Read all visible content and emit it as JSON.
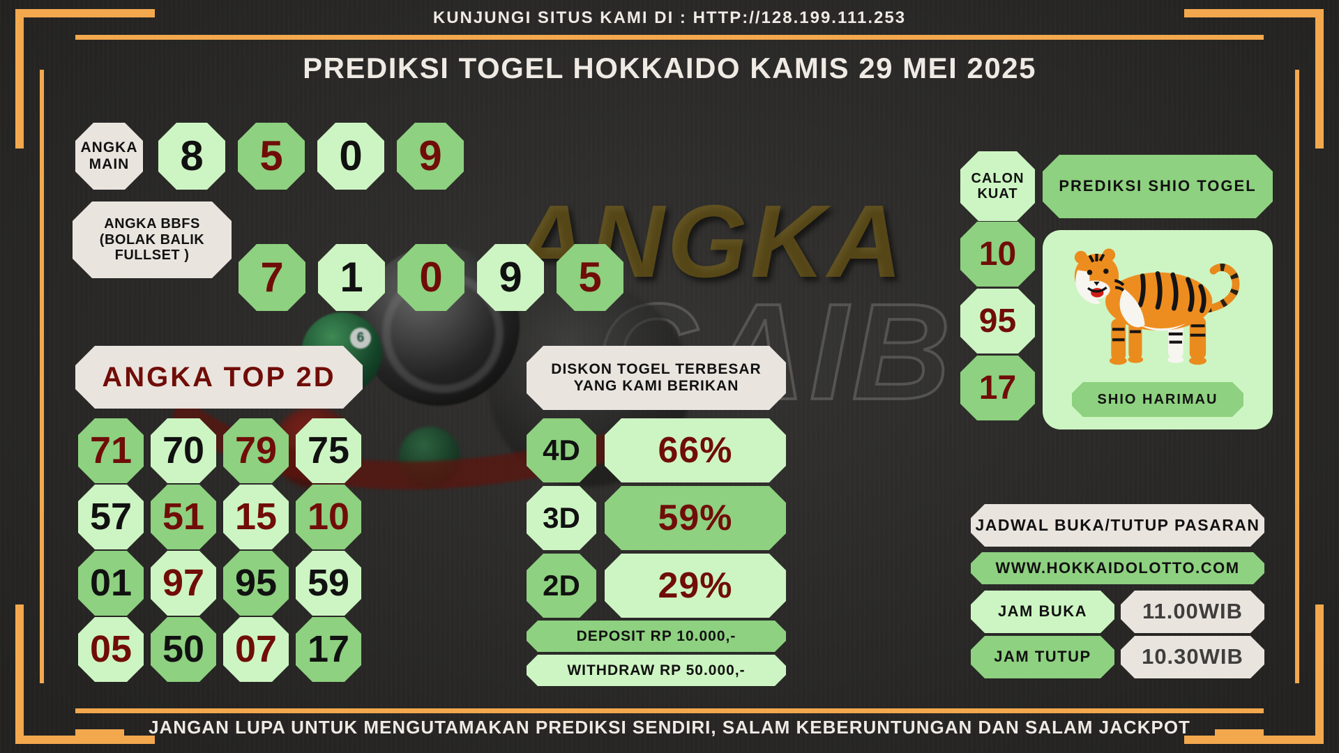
{
  "palette": {
    "background": "#2d2c2a",
    "accent_orange": "#f3a84e",
    "panel_cream": "#eae4df",
    "green_light": "#cdf5c3",
    "green_dark": "#8ed180",
    "text_maroon": "#700d08",
    "text_black": "#111111",
    "text_cream": "#efeae4",
    "text_gray": "#3f3e3c"
  },
  "top_bar": {
    "text": "KUNJUNGI SITUS KAMI DI : HTTP://128.199.111.253"
  },
  "title": "PREDIKSI TOGEL HOKKAIDO KAMIS 29 MEI 2025",
  "watermark": {
    "line1": "ANGKA",
    "line2": "GAIB",
    "billiard_ball_number": "6"
  },
  "angka_main": {
    "label": "ANGKA MAIN",
    "digits": [
      {
        "value": "8",
        "bg": "light",
        "fg": "black"
      },
      {
        "value": "5",
        "bg": "dark",
        "fg": "red"
      },
      {
        "value": "0",
        "bg": "light",
        "fg": "black"
      },
      {
        "value": "9",
        "bg": "dark",
        "fg": "red"
      }
    ]
  },
  "angka_bbfs": {
    "label": "ANGKA BBFS (BOLAK BALIK FULLSET )",
    "digits": [
      {
        "value": "7",
        "bg": "dark",
        "fg": "red"
      },
      {
        "value": "1",
        "bg": "light",
        "fg": "black"
      },
      {
        "value": "0",
        "bg": "dark",
        "fg": "red"
      },
      {
        "value": "9",
        "bg": "light",
        "fg": "black"
      },
      {
        "value": "5",
        "bg": "dark",
        "fg": "red"
      }
    ]
  },
  "angka_top_2d": {
    "label": "ANGKA TOP 2D",
    "numbers": [
      {
        "value": "71",
        "bg": "dark",
        "fg": "red"
      },
      {
        "value": "70",
        "bg": "light",
        "fg": "black"
      },
      {
        "value": "79",
        "bg": "dark",
        "fg": "red"
      },
      {
        "value": "75",
        "bg": "light",
        "fg": "black"
      },
      {
        "value": "57",
        "bg": "light",
        "fg": "black"
      },
      {
        "value": "51",
        "bg": "dark",
        "fg": "red"
      },
      {
        "value": "15",
        "bg": "light",
        "fg": "red"
      },
      {
        "value": "10",
        "bg": "dark",
        "fg": "red"
      },
      {
        "value": "01",
        "bg": "dark",
        "fg": "black"
      },
      {
        "value": "97",
        "bg": "light",
        "fg": "red"
      },
      {
        "value": "95",
        "bg": "dark",
        "fg": "black"
      },
      {
        "value": "59",
        "bg": "light",
        "fg": "black"
      },
      {
        "value": "05",
        "bg": "light",
        "fg": "red"
      },
      {
        "value": "50",
        "bg": "dark",
        "fg": "black"
      },
      {
        "value": "07",
        "bg": "light",
        "fg": "red"
      },
      {
        "value": "17",
        "bg": "dark",
        "fg": "black"
      }
    ]
  },
  "diskon": {
    "label": "DISKON TOGEL TERBESAR YANG KAMI BERIKAN",
    "rows": [
      {
        "label": "4D",
        "label_bg": "dark",
        "value": "66%",
        "value_bg": "light"
      },
      {
        "label": "3D",
        "label_bg": "light",
        "value": "59%",
        "value_bg": "dark"
      },
      {
        "label": "2D",
        "label_bg": "dark",
        "value": "29%",
        "value_bg": "light"
      }
    ],
    "deposit": "DEPOSIT RP 10.000,-",
    "withdraw": "WITHDRAW RP 50.000,-"
  },
  "calon_kuat": {
    "label": "CALON KUAT",
    "numbers": [
      {
        "value": "10",
        "bg": "dark",
        "fg": "red"
      },
      {
        "value": "95",
        "bg": "light",
        "fg": "red"
      },
      {
        "value": "17",
        "bg": "dark",
        "fg": "red"
      }
    ]
  },
  "shio": {
    "header": "PREDIKSI SHIO TOGEL",
    "name": "SHIO HARIMAU",
    "animal_icon": "tiger"
  },
  "jadwal": {
    "header": "JADWAL BUKA/TUTUP PASARAN",
    "website": "WWW.HOKKAIDOLOTTO.COM",
    "rows": [
      {
        "label": "JAM BUKA",
        "label_bg": "light",
        "value": "11.00WIB"
      },
      {
        "label": "JAM TUTUP",
        "label_bg": "dark",
        "value": "10.30WIB"
      }
    ]
  },
  "footer": {
    "text": "JANGAN LUPA UNTUK MENGUTAMAKAN PREDIKSI SENDIRI, SALAM KEBERUNTUNGAN DAN SALAM JACKPOT"
  }
}
